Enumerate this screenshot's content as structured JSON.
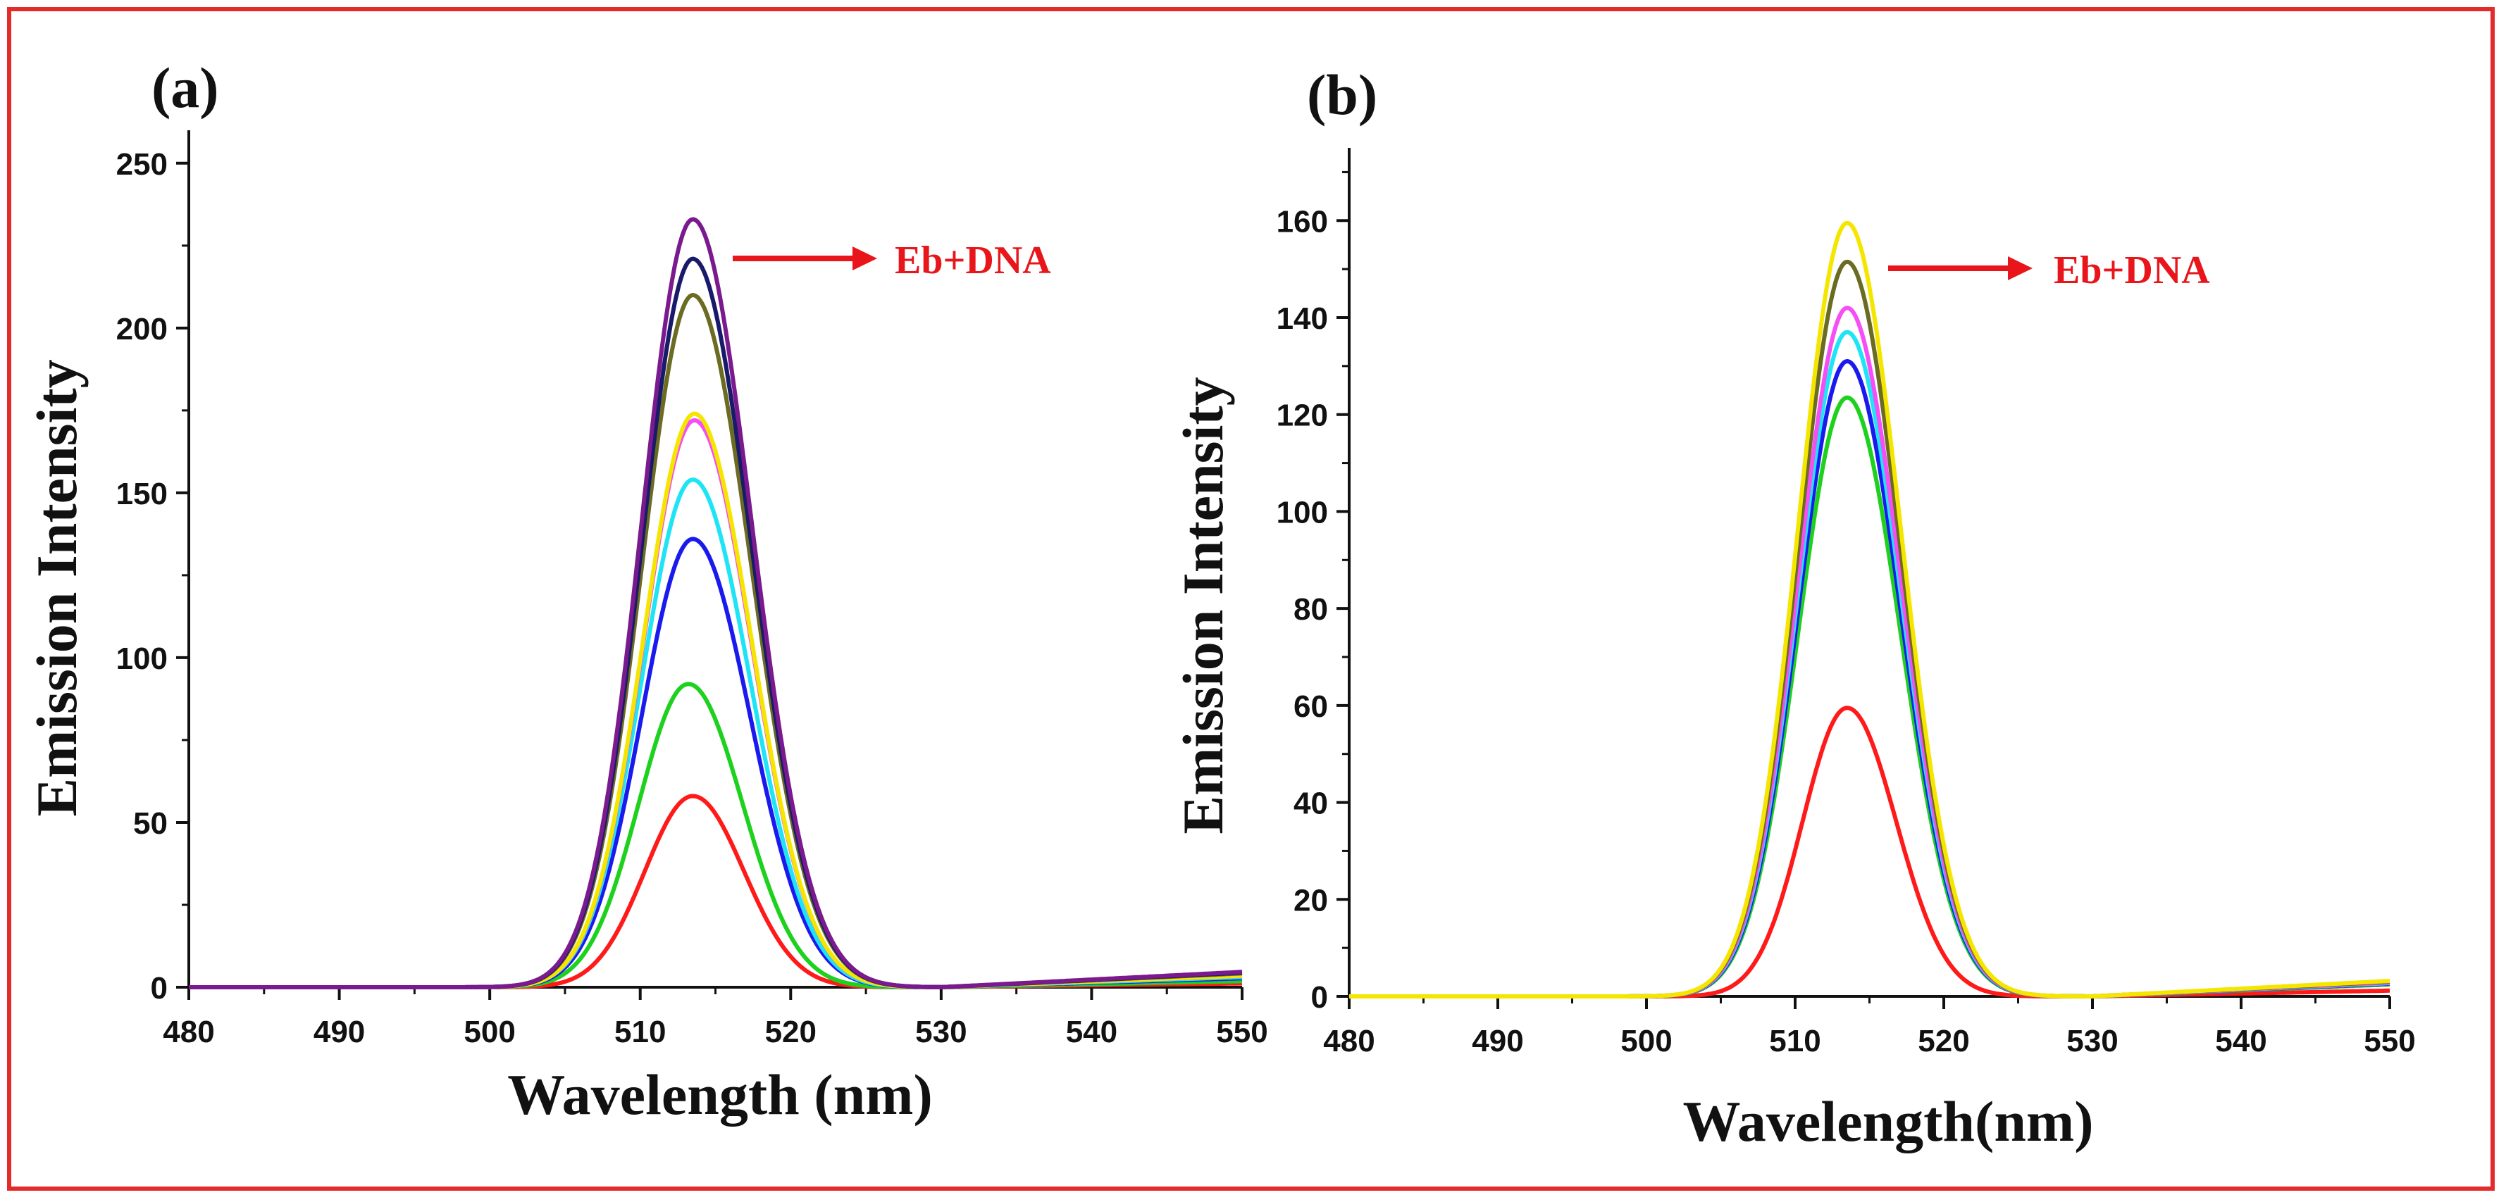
{
  "chart_data": [
    {
      "type": "line",
      "panel_label": "(a)",
      "xlabel": "Wavelength (nm)",
      "ylabel": "Emission Intensity",
      "xlim": [
        480,
        550
      ],
      "ylim": [
        0,
        260
      ],
      "xticks": [
        480,
        490,
        500,
        510,
        520,
        530,
        540,
        550
      ],
      "yticks": [
        0,
        50,
        100,
        150,
        200,
        250
      ],
      "annotation": "Eb+DNA",
      "annotation_color": "#e8161b",
      "series": [
        {
          "name": "red",
          "color": "#ff1a1a",
          "peak_x": 513.5,
          "peak": 58,
          "sigma_left": 3.2,
          "sigma_right": 3.4
        },
        {
          "name": "green",
          "color": "#1ed11e",
          "peak_x": 513.2,
          "peak": 92,
          "sigma_left": 3.3,
          "sigma_right": 3.6
        },
        {
          "name": "blue",
          "color": "#1a1aee",
          "peak_x": 513.5,
          "peak": 136,
          "sigma_left": 3.4,
          "sigma_right": 3.8
        },
        {
          "name": "cyan",
          "color": "#1ee4f5",
          "peak_x": 513.5,
          "peak": 154,
          "sigma_left": 3.4,
          "sigma_right": 3.8
        },
        {
          "name": "magenta",
          "color": "#f54ef5",
          "peak_x": 513.6,
          "peak": 172,
          "sigma_left": 3.4,
          "sigma_right": 3.8
        },
        {
          "name": "yellow",
          "color": "#f5e600",
          "peak_x": 513.6,
          "peak": 174,
          "sigma_left": 3.4,
          "sigma_right": 3.8
        },
        {
          "name": "olive",
          "color": "#6b6b22",
          "peak_x": 513.5,
          "peak": 210,
          "sigma_left": 3.4,
          "sigma_right": 3.9
        },
        {
          "name": "navy",
          "color": "#1a1a6b",
          "peak_x": 513.5,
          "peak": 221,
          "sigma_left": 3.4,
          "sigma_right": 3.9
        },
        {
          "name": "purple",
          "color": "#7b1a8f",
          "peak_x": 513.5,
          "peak": 233,
          "sigma_left": 3.4,
          "sigma_right": 3.9
        }
      ]
    },
    {
      "type": "line",
      "panel_label": "(b)",
      "xlabel": "Wavelength(nm)",
      "ylabel": "Emission Intensity",
      "xlim": [
        480,
        550
      ],
      "ylim": [
        0,
        175
      ],
      "xticks": [
        480,
        490,
        500,
        510,
        520,
        530,
        540,
        550
      ],
      "yticks": [
        0,
        20,
        40,
        60,
        80,
        100,
        120,
        140,
        160
      ],
      "annotation": "Eb+DNA",
      "annotation_color": "#e8161b",
      "series": [
        {
          "name": "red",
          "color": "#ff1a1a",
          "peak_x": 513.5,
          "peak": 59.5,
          "sigma_left": 3.0,
          "sigma_right": 3.3
        },
        {
          "name": "green",
          "color": "#1ed11e",
          "peak_x": 513.5,
          "peak": 123.5,
          "sigma_left": 3.3,
          "sigma_right": 3.6
        },
        {
          "name": "blue",
          "color": "#1a1aee",
          "peak_x": 513.5,
          "peak": 131,
          "sigma_left": 3.3,
          "sigma_right": 3.6
        },
        {
          "name": "cyan",
          "color": "#1ee4f5",
          "peak_x": 513.5,
          "peak": 137,
          "sigma_left": 3.3,
          "sigma_right": 3.6
        },
        {
          "name": "magenta",
          "color": "#f54ef5",
          "peak_x": 513.5,
          "peak": 142,
          "sigma_left": 3.3,
          "sigma_right": 3.6
        },
        {
          "name": "olive",
          "color": "#6b6b22",
          "peak_x": 513.5,
          "peak": 151.5,
          "sigma_left": 3.3,
          "sigma_right": 3.6
        },
        {
          "name": "yellow",
          "color": "#f5e600",
          "peak_x": 513.5,
          "peak": 159.5,
          "sigma_left": 3.3,
          "sigma_right": 3.6
        }
      ]
    }
  ]
}
